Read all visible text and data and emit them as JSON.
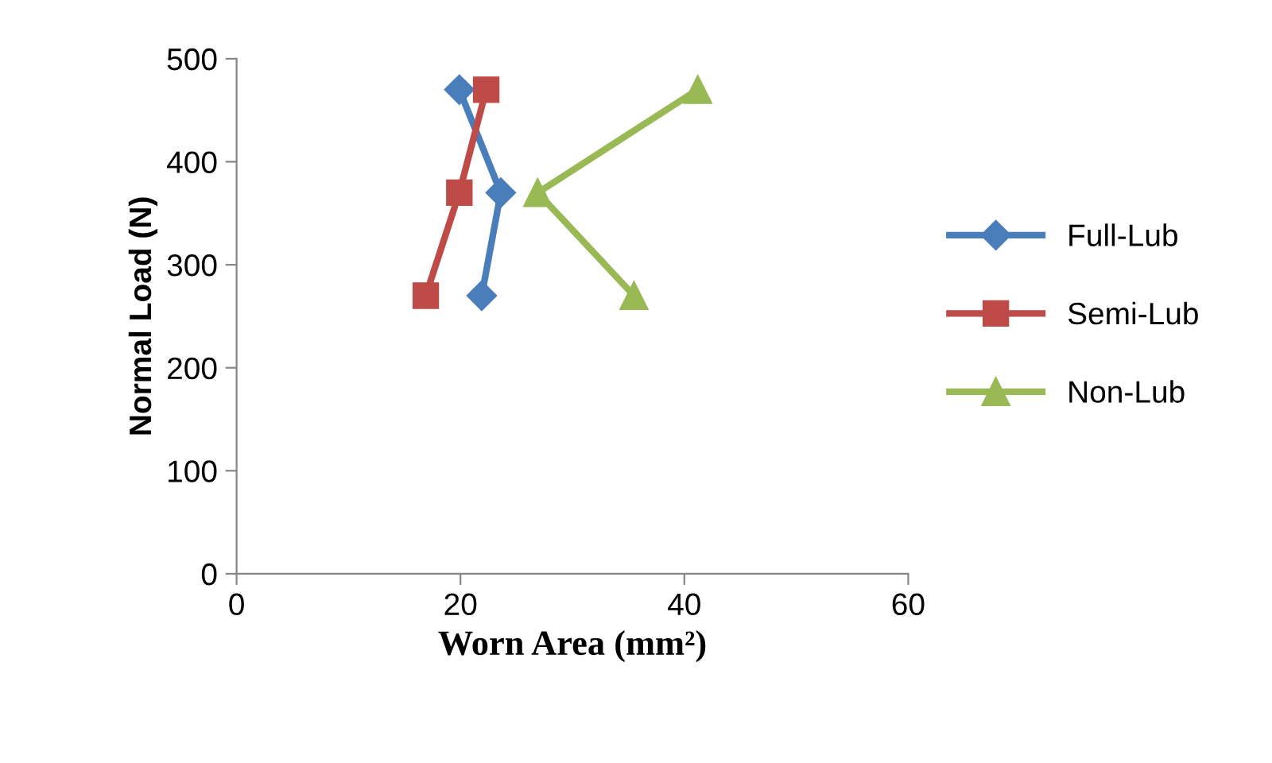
{
  "chart_data": {
    "type": "line",
    "xlabel": "Worn Area (mm²)",
    "ylabel": "Normal Load (N)",
    "xlim": [
      0,
      60
    ],
    "xticks": [
      0,
      20,
      40,
      60
    ],
    "ylim": [
      0,
      500
    ],
    "yticks": [
      0,
      100,
      200,
      300,
      400,
      500
    ],
    "grid": false,
    "legend": "right",
    "line_style": "solid",
    "series": [
      {
        "name": "Full-Lub",
        "color": "#4a7ebb",
        "marker": "diamond",
        "x": [
          19.9,
          23.6,
          21.9
        ],
        "values": [
          470,
          370,
          270
        ]
      },
      {
        "name": "Semi-Lub",
        "color": "#be4b48",
        "marker": "square",
        "x": [
          16.9,
          19.9,
          22.3
        ],
        "values": [
          270,
          370,
          470
        ]
      },
      {
        "name": "Non-Lub",
        "color": "#98b954",
        "marker": "triangle",
        "x": [
          35.5,
          26.9,
          41.2
        ],
        "values": [
          270,
          370,
          470
        ]
      }
    ]
  }
}
